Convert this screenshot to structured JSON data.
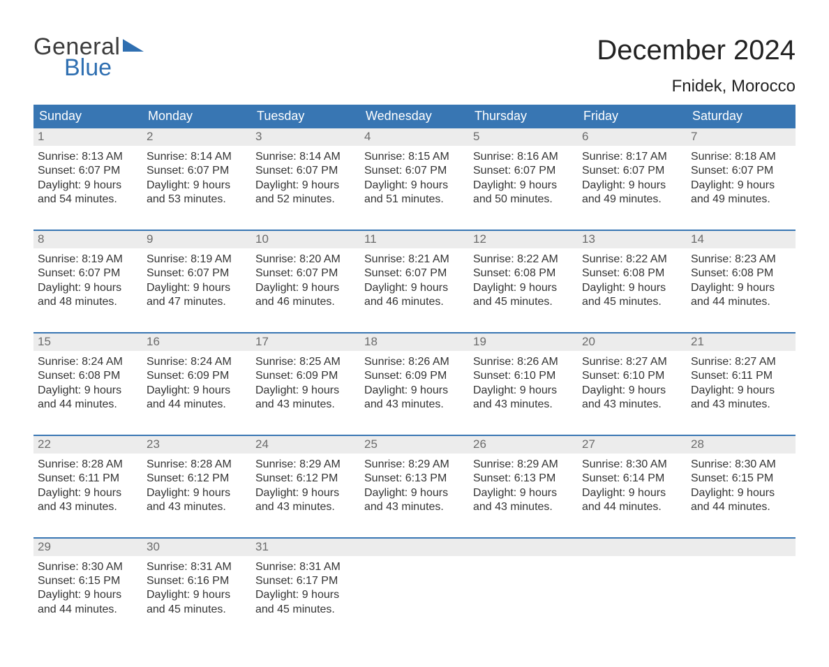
{
  "brand": {
    "word1": "General",
    "word2": "Blue",
    "word1_color": "#3b3b3b",
    "word2_color": "#2f6fb1",
    "triangle_color": "#2f6fb1"
  },
  "header": {
    "title": "December 2024",
    "location": "Fnidek, Morocco"
  },
  "colors": {
    "header_bg": "#3876b3",
    "header_text": "#ffffff",
    "daynum_bg": "#ececec",
    "daynum_text": "#6b6b6b",
    "row_border": "#3876b3",
    "body_text": "#333333",
    "page_bg": "#ffffff"
  },
  "typography": {
    "title_fontsize": 40,
    "location_fontsize": 24,
    "weekday_fontsize": 18,
    "daynum_fontsize": 17,
    "body_fontsize": 16
  },
  "weekdays": [
    "Sunday",
    "Monday",
    "Tuesday",
    "Wednesday",
    "Thursday",
    "Friday",
    "Saturday"
  ],
  "labels": {
    "sunrise": "Sunrise:",
    "sunset": "Sunset:",
    "daylight": "Daylight:"
  },
  "weeks": [
    [
      {
        "num": "1",
        "sunrise": "8:13 AM",
        "sunset": "6:07 PM",
        "daylight": "9 hours and 54 minutes."
      },
      {
        "num": "2",
        "sunrise": "8:14 AM",
        "sunset": "6:07 PM",
        "daylight": "9 hours and 53 minutes."
      },
      {
        "num": "3",
        "sunrise": "8:14 AM",
        "sunset": "6:07 PM",
        "daylight": "9 hours and 52 minutes."
      },
      {
        "num": "4",
        "sunrise": "8:15 AM",
        "sunset": "6:07 PM",
        "daylight": "9 hours and 51 minutes."
      },
      {
        "num": "5",
        "sunrise": "8:16 AM",
        "sunset": "6:07 PM",
        "daylight": "9 hours and 50 minutes."
      },
      {
        "num": "6",
        "sunrise": "8:17 AM",
        "sunset": "6:07 PM",
        "daylight": "9 hours and 49 minutes."
      },
      {
        "num": "7",
        "sunrise": "8:18 AM",
        "sunset": "6:07 PM",
        "daylight": "9 hours and 49 minutes."
      }
    ],
    [
      {
        "num": "8",
        "sunrise": "8:19 AM",
        "sunset": "6:07 PM",
        "daylight": "9 hours and 48 minutes."
      },
      {
        "num": "9",
        "sunrise": "8:19 AM",
        "sunset": "6:07 PM",
        "daylight": "9 hours and 47 minutes."
      },
      {
        "num": "10",
        "sunrise": "8:20 AM",
        "sunset": "6:07 PM",
        "daylight": "9 hours and 46 minutes."
      },
      {
        "num": "11",
        "sunrise": "8:21 AM",
        "sunset": "6:07 PM",
        "daylight": "9 hours and 46 minutes."
      },
      {
        "num": "12",
        "sunrise": "8:22 AM",
        "sunset": "6:08 PM",
        "daylight": "9 hours and 45 minutes."
      },
      {
        "num": "13",
        "sunrise": "8:22 AM",
        "sunset": "6:08 PM",
        "daylight": "9 hours and 45 minutes."
      },
      {
        "num": "14",
        "sunrise": "8:23 AM",
        "sunset": "6:08 PM",
        "daylight": "9 hours and 44 minutes."
      }
    ],
    [
      {
        "num": "15",
        "sunrise": "8:24 AM",
        "sunset": "6:08 PM",
        "daylight": "9 hours and 44 minutes."
      },
      {
        "num": "16",
        "sunrise": "8:24 AM",
        "sunset": "6:09 PM",
        "daylight": "9 hours and 44 minutes."
      },
      {
        "num": "17",
        "sunrise": "8:25 AM",
        "sunset": "6:09 PM",
        "daylight": "9 hours and 43 minutes."
      },
      {
        "num": "18",
        "sunrise": "8:26 AM",
        "sunset": "6:09 PM",
        "daylight": "9 hours and 43 minutes."
      },
      {
        "num": "19",
        "sunrise": "8:26 AM",
        "sunset": "6:10 PM",
        "daylight": "9 hours and 43 minutes."
      },
      {
        "num": "20",
        "sunrise": "8:27 AM",
        "sunset": "6:10 PM",
        "daylight": "9 hours and 43 minutes."
      },
      {
        "num": "21",
        "sunrise": "8:27 AM",
        "sunset": "6:11 PM",
        "daylight": "9 hours and 43 minutes."
      }
    ],
    [
      {
        "num": "22",
        "sunrise": "8:28 AM",
        "sunset": "6:11 PM",
        "daylight": "9 hours and 43 minutes."
      },
      {
        "num": "23",
        "sunrise": "8:28 AM",
        "sunset": "6:12 PM",
        "daylight": "9 hours and 43 minutes."
      },
      {
        "num": "24",
        "sunrise": "8:29 AM",
        "sunset": "6:12 PM",
        "daylight": "9 hours and 43 minutes."
      },
      {
        "num": "25",
        "sunrise": "8:29 AM",
        "sunset": "6:13 PM",
        "daylight": "9 hours and 43 minutes."
      },
      {
        "num": "26",
        "sunrise": "8:29 AM",
        "sunset": "6:13 PM",
        "daylight": "9 hours and 43 minutes."
      },
      {
        "num": "27",
        "sunrise": "8:30 AM",
        "sunset": "6:14 PM",
        "daylight": "9 hours and 44 minutes."
      },
      {
        "num": "28",
        "sunrise": "8:30 AM",
        "sunset": "6:15 PM",
        "daylight": "9 hours and 44 minutes."
      }
    ],
    [
      {
        "num": "29",
        "sunrise": "8:30 AM",
        "sunset": "6:15 PM",
        "daylight": "9 hours and 44 minutes."
      },
      {
        "num": "30",
        "sunrise": "8:31 AM",
        "sunset": "6:16 PM",
        "daylight": "9 hours and 45 minutes."
      },
      {
        "num": "31",
        "sunrise": "8:31 AM",
        "sunset": "6:17 PM",
        "daylight": "9 hours and 45 minutes."
      },
      {
        "empty": true
      },
      {
        "empty": true
      },
      {
        "empty": true
      },
      {
        "empty": true
      }
    ]
  ]
}
